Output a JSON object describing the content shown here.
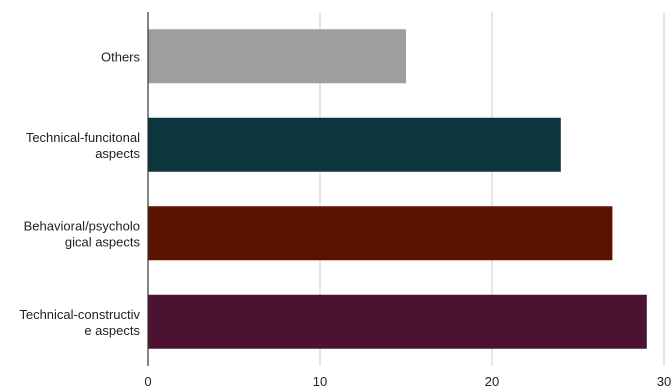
{
  "chart_data": {
    "type": "bar",
    "orientation": "horizontal",
    "categories": [
      [
        "Others"
      ],
      [
        "Technical-funcitonal",
        "aspects"
      ],
      [
        "Behavioral/psycholo",
        "gical aspects"
      ],
      [
        "Technical-constructiv",
        "e aspects"
      ]
    ],
    "values": [
      15,
      24,
      27,
      29
    ],
    "colors": [
      "#9e9e9e",
      "#0d353d",
      "#5c1200",
      "#4d1232"
    ],
    "xticks": [
      0,
      10,
      20,
      30
    ],
    "xlim": [
      0,
      30
    ],
    "grid": true,
    "title": "",
    "xlabel": "",
    "ylabel": ""
  }
}
